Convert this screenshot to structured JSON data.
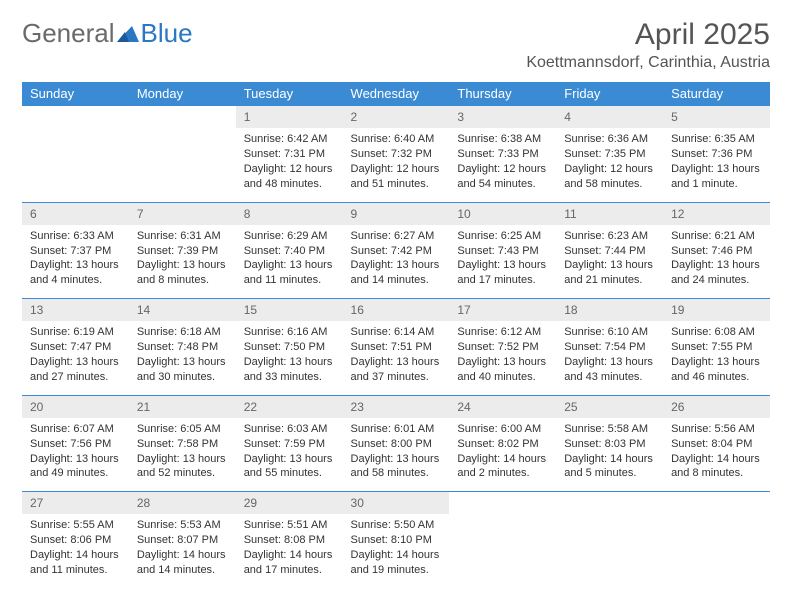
{
  "brand": {
    "part1": "General",
    "part2": "Blue"
  },
  "title": "April 2025",
  "location": "Koettmannsdorf, Carinthia, Austria",
  "colors": {
    "accent": "#3b8bd4",
    "dayrow_bg": "#ececec",
    "text": "#333333"
  },
  "weekdays": [
    "Sunday",
    "Monday",
    "Tuesday",
    "Wednesday",
    "Thursday",
    "Friday",
    "Saturday"
  ],
  "weeks": [
    [
      null,
      null,
      {
        "n": "1",
        "sr": "Sunrise: 6:42 AM",
        "ss": "Sunset: 7:31 PM",
        "dl": "Daylight: 12 hours and 48 minutes."
      },
      {
        "n": "2",
        "sr": "Sunrise: 6:40 AM",
        "ss": "Sunset: 7:32 PM",
        "dl": "Daylight: 12 hours and 51 minutes."
      },
      {
        "n": "3",
        "sr": "Sunrise: 6:38 AM",
        "ss": "Sunset: 7:33 PM",
        "dl": "Daylight: 12 hours and 54 minutes."
      },
      {
        "n": "4",
        "sr": "Sunrise: 6:36 AM",
        "ss": "Sunset: 7:35 PM",
        "dl": "Daylight: 12 hours and 58 minutes."
      },
      {
        "n": "5",
        "sr": "Sunrise: 6:35 AM",
        "ss": "Sunset: 7:36 PM",
        "dl": "Daylight: 13 hours and 1 minute."
      }
    ],
    [
      {
        "n": "6",
        "sr": "Sunrise: 6:33 AM",
        "ss": "Sunset: 7:37 PM",
        "dl": "Daylight: 13 hours and 4 minutes."
      },
      {
        "n": "7",
        "sr": "Sunrise: 6:31 AM",
        "ss": "Sunset: 7:39 PM",
        "dl": "Daylight: 13 hours and 8 minutes."
      },
      {
        "n": "8",
        "sr": "Sunrise: 6:29 AM",
        "ss": "Sunset: 7:40 PM",
        "dl": "Daylight: 13 hours and 11 minutes."
      },
      {
        "n": "9",
        "sr": "Sunrise: 6:27 AM",
        "ss": "Sunset: 7:42 PM",
        "dl": "Daylight: 13 hours and 14 minutes."
      },
      {
        "n": "10",
        "sr": "Sunrise: 6:25 AM",
        "ss": "Sunset: 7:43 PM",
        "dl": "Daylight: 13 hours and 17 minutes."
      },
      {
        "n": "11",
        "sr": "Sunrise: 6:23 AM",
        "ss": "Sunset: 7:44 PM",
        "dl": "Daylight: 13 hours and 21 minutes."
      },
      {
        "n": "12",
        "sr": "Sunrise: 6:21 AM",
        "ss": "Sunset: 7:46 PM",
        "dl": "Daylight: 13 hours and 24 minutes."
      }
    ],
    [
      {
        "n": "13",
        "sr": "Sunrise: 6:19 AM",
        "ss": "Sunset: 7:47 PM",
        "dl": "Daylight: 13 hours and 27 minutes."
      },
      {
        "n": "14",
        "sr": "Sunrise: 6:18 AM",
        "ss": "Sunset: 7:48 PM",
        "dl": "Daylight: 13 hours and 30 minutes."
      },
      {
        "n": "15",
        "sr": "Sunrise: 6:16 AM",
        "ss": "Sunset: 7:50 PM",
        "dl": "Daylight: 13 hours and 33 minutes."
      },
      {
        "n": "16",
        "sr": "Sunrise: 6:14 AM",
        "ss": "Sunset: 7:51 PM",
        "dl": "Daylight: 13 hours and 37 minutes."
      },
      {
        "n": "17",
        "sr": "Sunrise: 6:12 AM",
        "ss": "Sunset: 7:52 PM",
        "dl": "Daylight: 13 hours and 40 minutes."
      },
      {
        "n": "18",
        "sr": "Sunrise: 6:10 AM",
        "ss": "Sunset: 7:54 PM",
        "dl": "Daylight: 13 hours and 43 minutes."
      },
      {
        "n": "19",
        "sr": "Sunrise: 6:08 AM",
        "ss": "Sunset: 7:55 PM",
        "dl": "Daylight: 13 hours and 46 minutes."
      }
    ],
    [
      {
        "n": "20",
        "sr": "Sunrise: 6:07 AM",
        "ss": "Sunset: 7:56 PM",
        "dl": "Daylight: 13 hours and 49 minutes."
      },
      {
        "n": "21",
        "sr": "Sunrise: 6:05 AM",
        "ss": "Sunset: 7:58 PM",
        "dl": "Daylight: 13 hours and 52 minutes."
      },
      {
        "n": "22",
        "sr": "Sunrise: 6:03 AM",
        "ss": "Sunset: 7:59 PM",
        "dl": "Daylight: 13 hours and 55 minutes."
      },
      {
        "n": "23",
        "sr": "Sunrise: 6:01 AM",
        "ss": "Sunset: 8:00 PM",
        "dl": "Daylight: 13 hours and 58 minutes."
      },
      {
        "n": "24",
        "sr": "Sunrise: 6:00 AM",
        "ss": "Sunset: 8:02 PM",
        "dl": "Daylight: 14 hours and 2 minutes."
      },
      {
        "n": "25",
        "sr": "Sunrise: 5:58 AM",
        "ss": "Sunset: 8:03 PM",
        "dl": "Daylight: 14 hours and 5 minutes."
      },
      {
        "n": "26",
        "sr": "Sunrise: 5:56 AM",
        "ss": "Sunset: 8:04 PM",
        "dl": "Daylight: 14 hours and 8 minutes."
      }
    ],
    [
      {
        "n": "27",
        "sr": "Sunrise: 5:55 AM",
        "ss": "Sunset: 8:06 PM",
        "dl": "Daylight: 14 hours and 11 minutes."
      },
      {
        "n": "28",
        "sr": "Sunrise: 5:53 AM",
        "ss": "Sunset: 8:07 PM",
        "dl": "Daylight: 14 hours and 14 minutes."
      },
      {
        "n": "29",
        "sr": "Sunrise: 5:51 AM",
        "ss": "Sunset: 8:08 PM",
        "dl": "Daylight: 14 hours and 17 minutes."
      },
      {
        "n": "30",
        "sr": "Sunrise: 5:50 AM",
        "ss": "Sunset: 8:10 PM",
        "dl": "Daylight: 14 hours and 19 minutes."
      },
      null,
      null,
      null
    ]
  ]
}
